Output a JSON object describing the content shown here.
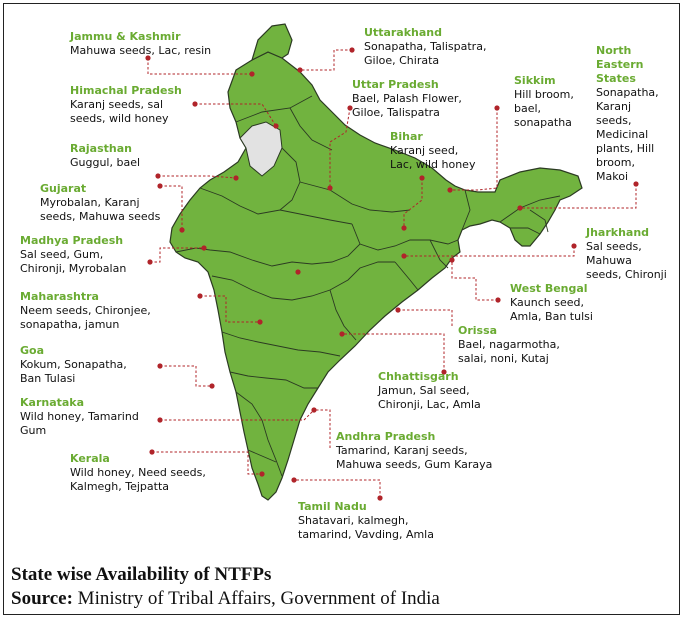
{
  "labels": [
    {
      "id": "jk",
      "state": "Jammu & Kashmir",
      "products": [
        "Mahuwa seeds, Lac, resin"
      ]
    },
    {
      "id": "hp",
      "state": "Himachal Pradesh",
      "products": [
        "Karanj seeds, sal",
        "seeds, wild honey"
      ]
    },
    {
      "id": "rj",
      "state": "Rajasthan",
      "products": [
        "Guggul, bael"
      ]
    },
    {
      "id": "gj",
      "state": "Gujarat",
      "products": [
        "Myrobalan, Karanj",
        "seeds, Mahuwa seeds"
      ]
    },
    {
      "id": "mp",
      "state": "Madhya Pradesh",
      "products": [
        "Sal seed, Gum,",
        "Chironji, Myrobalan"
      ]
    },
    {
      "id": "mh",
      "state": "Maharashtra",
      "products": [
        "Neem seeds, Chironjee,",
        "sonapatha, jamun"
      ]
    },
    {
      "id": "goa",
      "state": "Goa",
      "products": [
        "Kokum, Sonapatha,",
        "Ban Tulasi"
      ]
    },
    {
      "id": "ka",
      "state": "Karnataka",
      "products": [
        "Wild honey, Tamarind",
        "Gum"
      ]
    },
    {
      "id": "kl",
      "state": "Kerala",
      "products": [
        "Wild honey, Need seeds,",
        "Kalmegh, Tejpatta"
      ]
    },
    {
      "id": "uk",
      "state": "Uttarakhand",
      "products": [
        "Sonapatha, Talispatra,",
        "Giloe, Chirata"
      ]
    },
    {
      "id": "up",
      "state": "Uttar Pradesh",
      "products": [
        "Bael, Palash Flower,",
        "Giloe, Talispatra"
      ]
    },
    {
      "id": "sk",
      "state": "Sikkim",
      "products": [
        "Hill broom,",
        "bael,",
        "sonapatha"
      ]
    },
    {
      "id": "ne",
      "state": "North\nEastern\nStates",
      "products": [
        "Sonapatha,",
        "Karanj",
        "seeds,",
        "Medicinal",
        "plants, Hill",
        "broom,",
        "Makoi"
      ]
    },
    {
      "id": "br",
      "state": "Bihar",
      "products": [
        "Karanj seed,",
        "Lac, wild honey"
      ]
    },
    {
      "id": "jh",
      "state": "Jharkhand",
      "products": [
        "Sal seeds,",
        "Mahuwa",
        "seeds, Chironji"
      ]
    },
    {
      "id": "wb",
      "state": "West Bengal",
      "products": [
        "Kaunch seed,",
        "Amla, Ban tulsi"
      ]
    },
    {
      "id": "or",
      "state": "Orissa",
      "products": [
        "Bael, nagarmotha,",
        "salai, noni, Kutaj"
      ]
    },
    {
      "id": "cg",
      "state": "Chhattisgarh",
      "products": [
        "Jamun, Sal seed,",
        "Chironji, Lac, Amla"
      ]
    },
    {
      "id": "ap",
      "state": "Andhra Pradesh",
      "products": [
        "Tamarind, Karanj seeds,",
        "Mahuwa seeds, Gum Karaya"
      ]
    },
    {
      "id": "tn",
      "state": "Tamil Nadu",
      "products": [
        "Shatavari, kalmegh,",
        "tamarind, Vavding, Amla"
      ]
    }
  ],
  "caption": {
    "title": "State wise Availability of NTFPs",
    "source_label": "Source:",
    "source_text": " Ministry of Tribal Affairs, Government of India"
  },
  "colors": {
    "land": "#71b33f",
    "border": "#2b3a22",
    "pak_area": "#e2e2e2",
    "leader": "#b0242a",
    "state_label": "#6aab32"
  }
}
